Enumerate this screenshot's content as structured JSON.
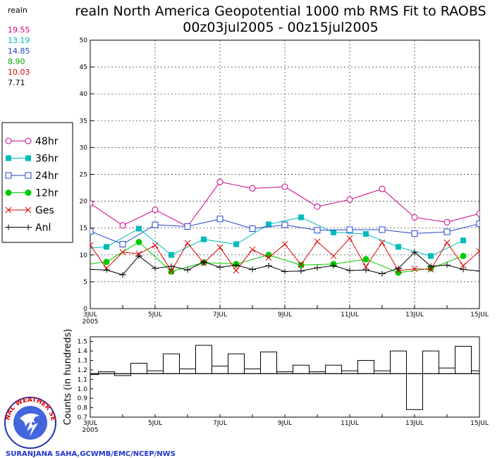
{
  "header": {
    "title_line1": "realn North America Geopotential 1000 mb RMS Fit to RAOBS",
    "title_line2": "00z03jul2005 - 00z15jul2005"
  },
  "summary": {
    "label": "realn",
    "values": [
      {
        "text": "19.55",
        "color": "#cc0088"
      },
      {
        "text": "13.19",
        "color": "#00bbbb"
      },
      {
        "text": "14.85",
        "color": "#2244cc"
      },
      {
        "text": "8.90",
        "color": "#00aa00"
      },
      {
        "text": "10.03",
        "color": "#dd0000"
      },
      {
        "text": "7.71",
        "color": "#000000"
      }
    ]
  },
  "legend": {
    "items": [
      {
        "label": "48hr",
        "marker": "open-circle",
        "color": "#cc0088"
      },
      {
        "label": "36hr",
        "marker": "filled-square",
        "color": "#00bbbb"
      },
      {
        "label": "24hr",
        "marker": "open-square",
        "color": "#2244cc"
      },
      {
        "label": "12hr",
        "marker": "filled-circle",
        "color": "#00cc00"
      },
      {
        "label": "Ges",
        "marker": "x",
        "color": "#dd0000"
      },
      {
        "label": "Anl",
        "marker": "plus",
        "color": "#000000"
      }
    ]
  },
  "footer": {
    "credit": "SURANJANA SAHA,GCWMB/EMC/NCEP/NWS",
    "logo_text": "NATIONAL WEATHER SERVICE"
  },
  "chart_data": [
    {
      "type": "line",
      "title": "realn North America Geopotential 1000 mb RMS Fit to RAOBS",
      "xlabel": "",
      "ylabel": "",
      "xlim": [
        0,
        12
      ],
      "ylim": [
        0,
        50
      ],
      "y_ticks": [
        0,
        5,
        10,
        15,
        20,
        25,
        30,
        35,
        40,
        45,
        50
      ],
      "x_ticks": [
        {
          "pos": 0,
          "label": "3JUL",
          "sublabel": "2005"
        },
        {
          "pos": 2,
          "label": "5JUL"
        },
        {
          "pos": 4,
          "label": "7JUL"
        },
        {
          "pos": 6,
          "label": "9JUL"
        },
        {
          "pos": 8,
          "label": "11JUL"
        },
        {
          "pos": 10,
          "label": "13JUL"
        },
        {
          "pos": 12,
          "label": "15JUL"
        }
      ],
      "series": [
        {
          "name": "48hr",
          "color": "#cc0088",
          "marker": "open-circle",
          "x": [
            0,
            1,
            2,
            3,
            4,
            5,
            6,
            7,
            8,
            9,
            10,
            11,
            12
          ],
          "values": [
            19.6,
            15.5,
            18.4,
            15.3,
            23.6,
            22.4,
            22.7,
            19.0,
            20.3,
            22.3,
            17.0,
            16.1,
            17.7
          ]
        },
        {
          "name": "36hr",
          "color": "#00bbbb",
          "marker": "filled-square",
          "x": [
            -0.5,
            0.5,
            1.5,
            2.5,
            3.5,
            4.5,
            5.5,
            6.5,
            7.5,
            8.5,
            9.5,
            10.5,
            11.5
          ],
          "values": [
            11.0,
            11.5,
            14.9,
            10.0,
            12.9,
            12.0,
            15.7,
            17.0,
            14.2,
            13.9,
            11.5,
            9.8,
            12.7
          ]
        },
        {
          "name": "24hr",
          "color": "#2244cc",
          "marker": "open-square",
          "x": [
            0,
            1,
            2,
            3,
            4,
            5,
            6,
            7,
            8,
            9,
            10,
            11,
            12
          ],
          "values": [
            14.4,
            12.0,
            15.6,
            15.3,
            16.7,
            14.9,
            15.6,
            14.6,
            14.7,
            14.7,
            14.0,
            14.3,
            15.8
          ]
        },
        {
          "name": "12hr",
          "color": "#00cc00",
          "marker": "filled-circle",
          "x": [
            -0.5,
            0.5,
            1.5,
            2.5,
            3.5,
            4.5,
            5.5,
            6.5,
            7.5,
            8.5,
            9.5,
            10.5,
            11.5
          ],
          "values": [
            8.0,
            8.7,
            12.4,
            6.9,
            8.6,
            8.3,
            10.0,
            8.1,
            8.3,
            9.2,
            6.7,
            7.5,
            9.8
          ]
        },
        {
          "name": "Ges",
          "color": "#dd0000",
          "marker": "x",
          "x": [
            0,
            0.5,
            1,
            1.5,
            2,
            2.5,
            3,
            3.5,
            4,
            4.5,
            5,
            5.5,
            6,
            6.5,
            7,
            7.5,
            8,
            8.5,
            9,
            9.5,
            10,
            10.5,
            11,
            11.5,
            12
          ],
          "values": [
            11.8,
            7.5,
            10.5,
            10.2,
            11.8,
            7.0,
            12.2,
            8.5,
            11.4,
            7.1,
            11.0,
            9.5,
            12.0,
            8.2,
            12.5,
            9.8,
            13.1,
            7.8,
            12.3,
            7.1,
            7.4,
            7.3,
            12.3,
            8.0,
            10.7
          ]
        },
        {
          "name": "Anl",
          "color": "#000000",
          "marker": "plus",
          "x": [
            0,
            0.5,
            1,
            1.5,
            2,
            2.5,
            3,
            3.5,
            4,
            4.5,
            5,
            5.5,
            6,
            6.5,
            7,
            7.5,
            8,
            8.5,
            9,
            9.5,
            10,
            10.5,
            11,
            11.5,
            12
          ],
          "values": [
            7.3,
            7.2,
            6.3,
            9.8,
            7.5,
            7.9,
            7.2,
            8.7,
            7.7,
            8.1,
            7.3,
            8.0,
            6.9,
            7.0,
            7.6,
            8.0,
            7.1,
            7.2,
            6.5,
            7.5,
            10.5,
            7.9,
            8.1,
            7.3,
            7.0
          ]
        }
      ]
    },
    {
      "type": "bar",
      "title": "",
      "ylabel": "Counts (in hundreds)",
      "ylim": [
        0.7,
        1.55
      ],
      "y_ticks": [
        0.7,
        0.8,
        0.9,
        1.0,
        1.1,
        1.2,
        1.3,
        1.4,
        1.5
      ],
      "baseline": 1.16,
      "x_ticks": [
        {
          "pos": 0,
          "label": "3JUL",
          "sublabel": "2005"
        },
        {
          "pos": 2,
          "label": "5JUL"
        },
        {
          "pos": 4,
          "label": "7JUL"
        },
        {
          "pos": 6,
          "label": "9JUL"
        },
        {
          "pos": 8,
          "label": "11JUL"
        },
        {
          "pos": 10,
          "label": "13JUL"
        },
        {
          "pos": 12,
          "label": "15JUL"
        }
      ],
      "x": [
        0,
        0.5,
        1,
        1.5,
        2,
        2.5,
        3,
        3.5,
        4,
        4.5,
        5,
        5.5,
        6,
        6.5,
        7,
        7.5,
        8,
        8.5,
        9,
        9.5,
        10,
        10.5,
        11,
        11.5,
        12
      ],
      "values": [
        1.15,
        1.18,
        1.14,
        1.27,
        1.19,
        1.37,
        1.21,
        1.46,
        1.24,
        1.37,
        1.21,
        1.39,
        1.18,
        1.25,
        1.18,
        1.25,
        1.19,
        1.3,
        1.19,
        1.4,
        0.78,
        1.4,
        1.22,
        1.45,
        1.19
      ]
    }
  ]
}
